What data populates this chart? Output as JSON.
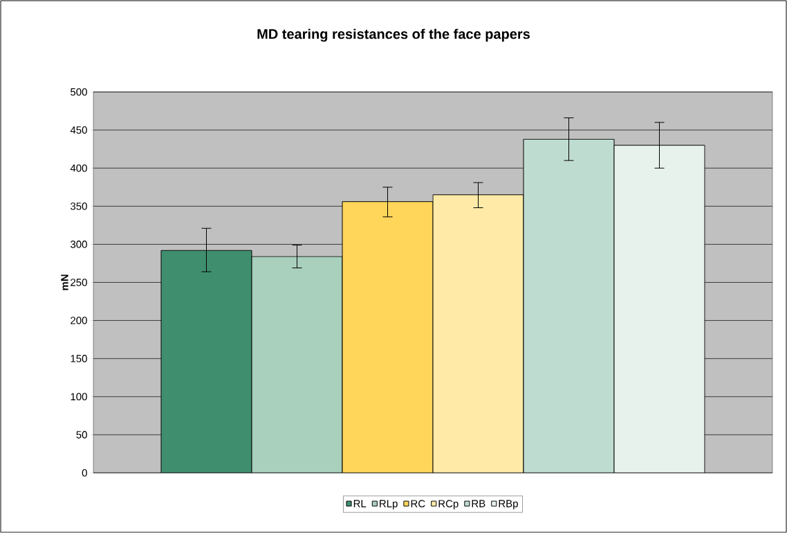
{
  "chart_data": {
    "type": "bar",
    "title": "MD tearing resistances of the face papers",
    "ylabel": "mN",
    "categories": [
      null
    ],
    "series": [
      {
        "name": "RL",
        "color": "#3f8f6f",
        "values": [
          292
        ],
        "errors": [
          [
            264,
            321
          ]
        ]
      },
      {
        "name": "RLp",
        "color": "#a9cfbd",
        "values": [
          284
        ],
        "errors": [
          [
            269,
            299
          ]
        ]
      },
      {
        "name": "RC",
        "color": "#ffd65a",
        "values": [
          356
        ],
        "errors": [
          [
            336,
            375
          ]
        ]
      },
      {
        "name": "RCp",
        "color": "#ffeaa8",
        "values": [
          365
        ],
        "errors": [
          [
            348,
            381
          ]
        ]
      },
      {
        "name": "RB",
        "color": "#bfdcd0",
        "values": [
          438
        ],
        "errors": [
          [
            410,
            466
          ]
        ]
      },
      {
        "name": "RBp",
        "color": "#e8f2ed",
        "values": [
          430
        ],
        "errors": [
          [
            400,
            460
          ]
        ]
      }
    ],
    "ylim": [
      0,
      500
    ],
    "yticks": [
      0,
      50,
      100,
      150,
      200,
      250,
      300,
      350,
      400,
      450,
      500
    ],
    "grid": "y",
    "legend": "bottom"
  }
}
